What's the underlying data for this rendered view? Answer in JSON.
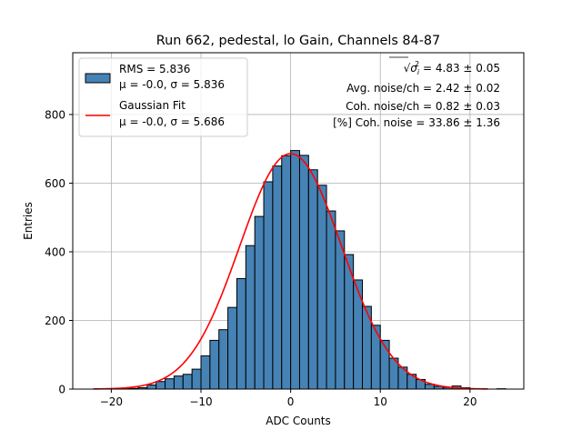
{
  "chart_data": {
    "type": "bar",
    "title": "Run 662, pedestal, lo Gain, Channels 84-87",
    "xlabel": "ADC Counts",
    "ylabel": "Entries",
    "xlim": [
      -24.3,
      26.0
    ],
    "ylim": [
      0,
      980
    ],
    "xticks": [
      -20,
      -10,
      0,
      10,
      20
    ],
    "xtick_labels": [
      "−20",
      "−10",
      "0",
      "10",
      "20"
    ],
    "yticks": [
      0,
      200,
      400,
      600,
      800
    ],
    "ytick_labels": [
      "0",
      "200",
      "400",
      "600",
      "800"
    ],
    "grid": true,
    "bin_width": 1.0,
    "bin_left_edges": [
      -22,
      -21,
      -20,
      -19,
      -18,
      -17,
      -16,
      -15,
      -14,
      -13,
      -12,
      -11,
      -10,
      -9,
      -8,
      -7,
      -6,
      -5,
      -4,
      -3,
      -2,
      -1,
      0,
      1,
      2,
      3,
      4,
      5,
      6,
      7,
      8,
      9,
      10,
      11,
      12,
      13,
      14,
      15,
      16,
      17,
      18,
      19,
      20,
      21,
      22,
      23
    ],
    "values": [
      0,
      0,
      0,
      1,
      2,
      4,
      12,
      22,
      30,
      38,
      43,
      58,
      97,
      142,
      173,
      238,
      322,
      418,
      503,
      604,
      650,
      680,
      695,
      681,
      639,
      594,
      519,
      461,
      392,
      318,
      241,
      186,
      142,
      90,
      64,
      43,
      28,
      14,
      8,
      5,
      9,
      4,
      1,
      0,
      0,
      1
    ],
    "series": [
      {
        "name": "RMS = 5.836",
        "label_line2": "μ = -0.0, σ = 5.836",
        "style": "histogram",
        "color": "#4682b4",
        "edge_color": "#000000"
      },
      {
        "name": "Gaussian Fit",
        "label_line2": "μ = -0.0, σ = 5.686",
        "style": "line",
        "color": "#ff0000",
        "mu": 0.0,
        "sigma": 5.686,
        "amplitude": 686,
        "x_range": [
          -22,
          22
        ]
      }
    ],
    "legend_position": "upper-left",
    "annotations": [
      {
        "prefix": "√",
        "sym": "σ",
        "sub": "i",
        "sup": "2",
        "text": " = 4.83 ± 0.05"
      },
      {
        "text": "Avg. noise/ch = 2.42 ± 0.02"
      },
      {
        "text": "Coh. noise/ch = 0.82 ± 0.03"
      },
      {
        "text": "[%] Coh. noise = 33.86 ± 1.36"
      }
    ]
  }
}
